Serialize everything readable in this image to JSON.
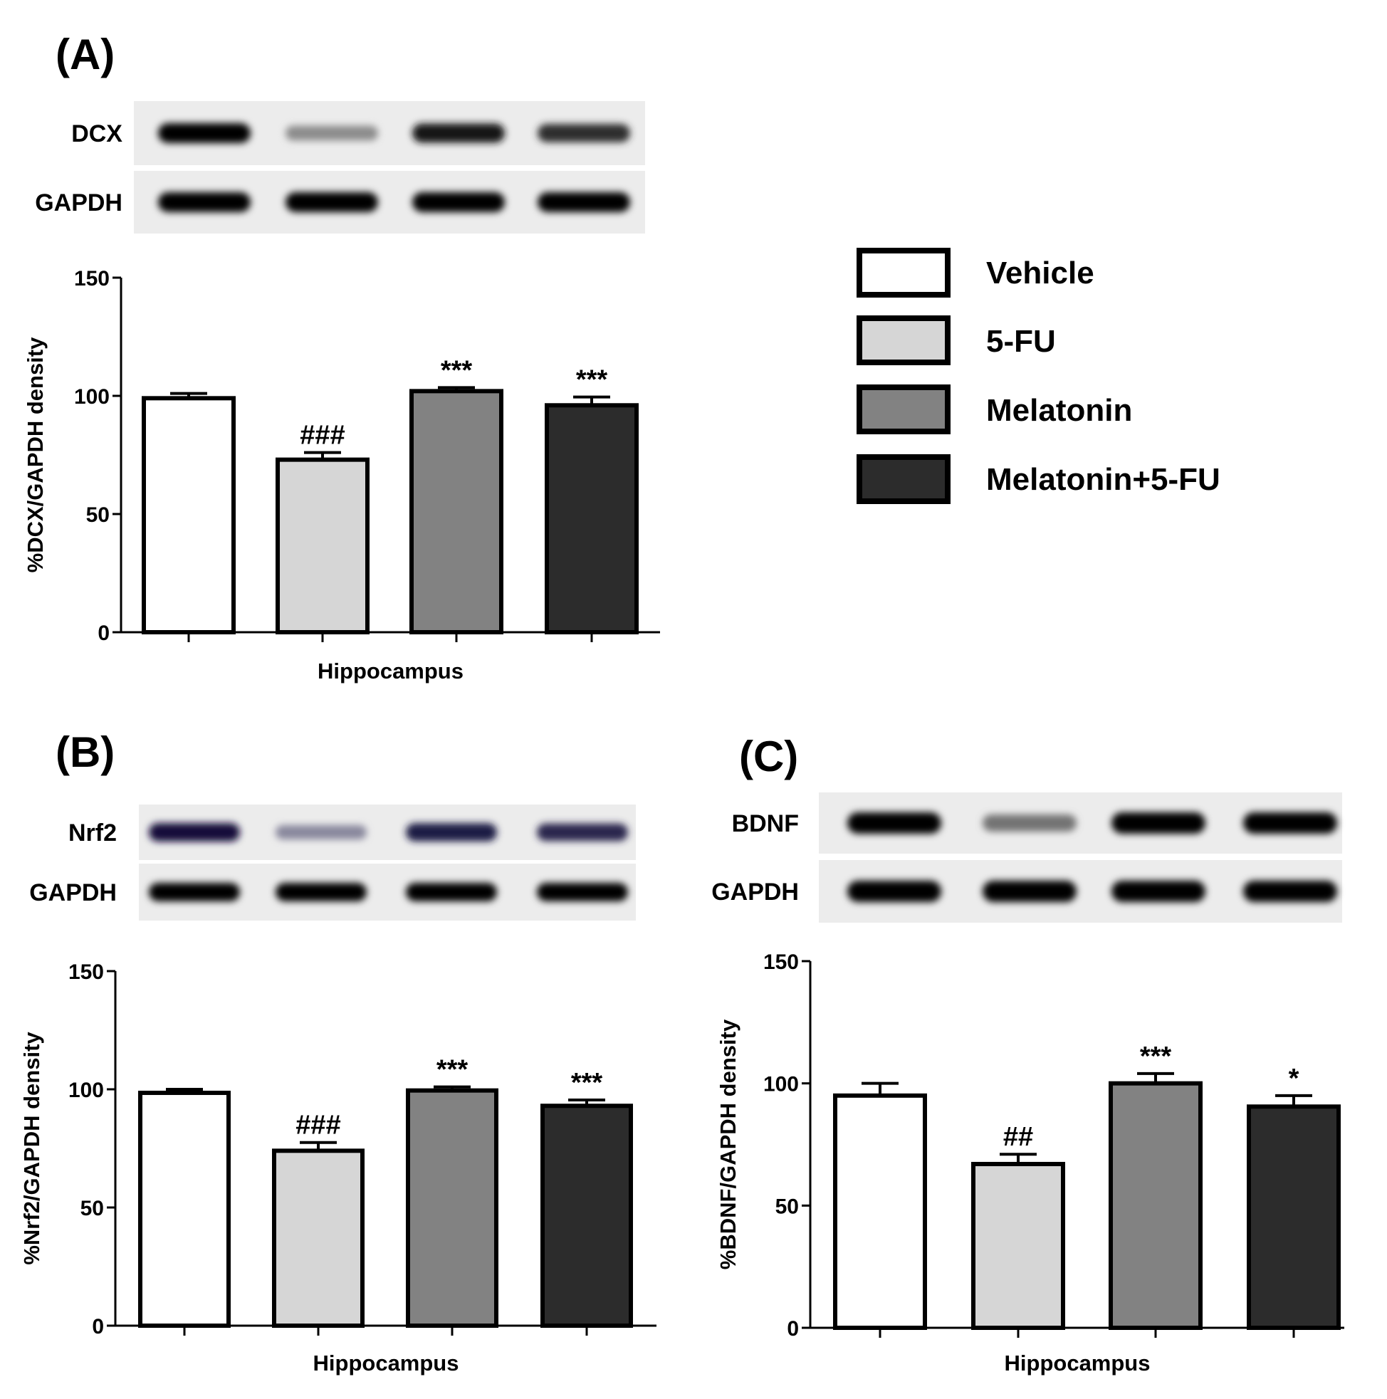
{
  "legend": {
    "entries": [
      {
        "label": "Vehicle",
        "color": "#ffffff"
      },
      {
        "label": "5-FU",
        "color": "#d6d6d6"
      },
      {
        "label": "Melatonin",
        "color": "#828282"
      },
      {
        "label": "Melatonin+5-FU",
        "color": "#2c2c2c"
      }
    ]
  },
  "chart_data": [
    {
      "panel": "(A)",
      "type": "bar",
      "blots": [
        {
          "label": "DCX",
          "band_intensity": [
            1.0,
            0.45,
            0.92,
            0.82
          ],
          "tint": "#000000"
        },
        {
          "label": "GAPDH",
          "band_intensity": [
            1.0,
            1.0,
            1.0,
            1.0
          ],
          "tint": "#000000"
        }
      ],
      "categories": [
        "Vehicle",
        "5-FU",
        "Melatonin",
        "Melatonin+5-FU"
      ],
      "values": [
        99,
        73,
        102,
        96
      ],
      "errors": [
        2,
        3,
        1.5,
        3.5
      ],
      "significance": [
        "",
        "###",
        "***",
        "***"
      ],
      "xlabel": "Hippocampus",
      "ylabel": "%DCX/GAPDH density",
      "yticks": [
        "0",
        "50",
        "100",
        "150"
      ],
      "ylim": [
        0,
        150
      ]
    },
    {
      "panel": "(B)",
      "type": "bar",
      "blots": [
        {
          "label": "Nrf2",
          "band_intensity": [
            1.0,
            0.5,
            0.95,
            0.9
          ],
          "tint": "#12103a"
        },
        {
          "label": "GAPDH",
          "band_intensity": [
            1.0,
            1.0,
            1.0,
            1.0
          ],
          "tint": "#000000"
        }
      ],
      "categories": [
        "Vehicle",
        "5-FU",
        "Melatonin",
        "Melatonin+5-FU"
      ],
      "values": [
        98.5,
        74,
        99.5,
        93
      ],
      "errors": [
        1.5,
        3.5,
        1.5,
        2.5
      ],
      "significance": [
        "",
        "###",
        "***",
        "***"
      ],
      "xlabel": "Hippocampus",
      "ylabel": "%Nrf2/GAPDH density",
      "yticks": [
        "0",
        "50",
        "100",
        "150"
      ],
      "ylim": [
        0,
        150
      ]
    },
    {
      "panel": "(C)",
      "type": "bar",
      "blots": [
        {
          "label": "BDNF",
          "band_intensity": [
            1.0,
            0.55,
            1.0,
            1.0
          ],
          "tint": "#000000"
        },
        {
          "label": "GAPDH",
          "band_intensity": [
            1.0,
            1.0,
            1.0,
            1.0
          ],
          "tint": "#000000"
        }
      ],
      "categories": [
        "Vehicle",
        "5-FU",
        "Melatonin",
        "Melatonin+5-FU"
      ],
      "values": [
        95,
        67,
        100,
        90.5
      ],
      "errors": [
        5,
        4,
        4,
        4.5
      ],
      "significance": [
        "",
        "##",
        "***",
        "*"
      ],
      "xlabel": "Hippocampus",
      "ylabel": "%BDNF/GAPDH density",
      "yticks": [
        "0",
        "50",
        "100",
        "150"
      ],
      "ylim": [
        0,
        150
      ]
    }
  ]
}
